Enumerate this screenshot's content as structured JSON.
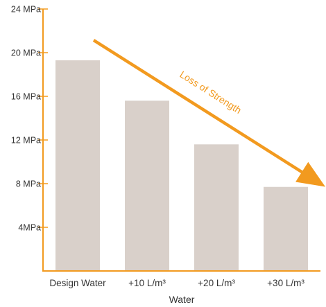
{
  "chart_data": {
    "type": "bar",
    "categories": [
      "Design Water",
      "+10 L/m³",
      "+20 L/m³",
      "+30 L/m³"
    ],
    "values": [
      19.3,
      15.6,
      11.6,
      7.7
    ],
    "xlabel": "Water",
    "ylabel": "",
    "ylim": [
      0,
      24
    ],
    "yticks": [
      {
        "value": 4,
        "label": "4MPa"
      },
      {
        "value": 8,
        "label": "8 MPa"
      },
      {
        "value": 12,
        "label": "12 MPa"
      },
      {
        "value": 16,
        "label": "16 MPa"
      },
      {
        "value": 20,
        "label": "20 MPa"
      },
      {
        "value": 24,
        "label": "24 MPa"
      }
    ],
    "annotation": "Loss of Strength",
    "grid": false,
    "colors": {
      "bar": "#d9d0ca",
      "axis": "#f29a1f",
      "arrow": "#f29a1f",
      "text": "#333333"
    }
  }
}
